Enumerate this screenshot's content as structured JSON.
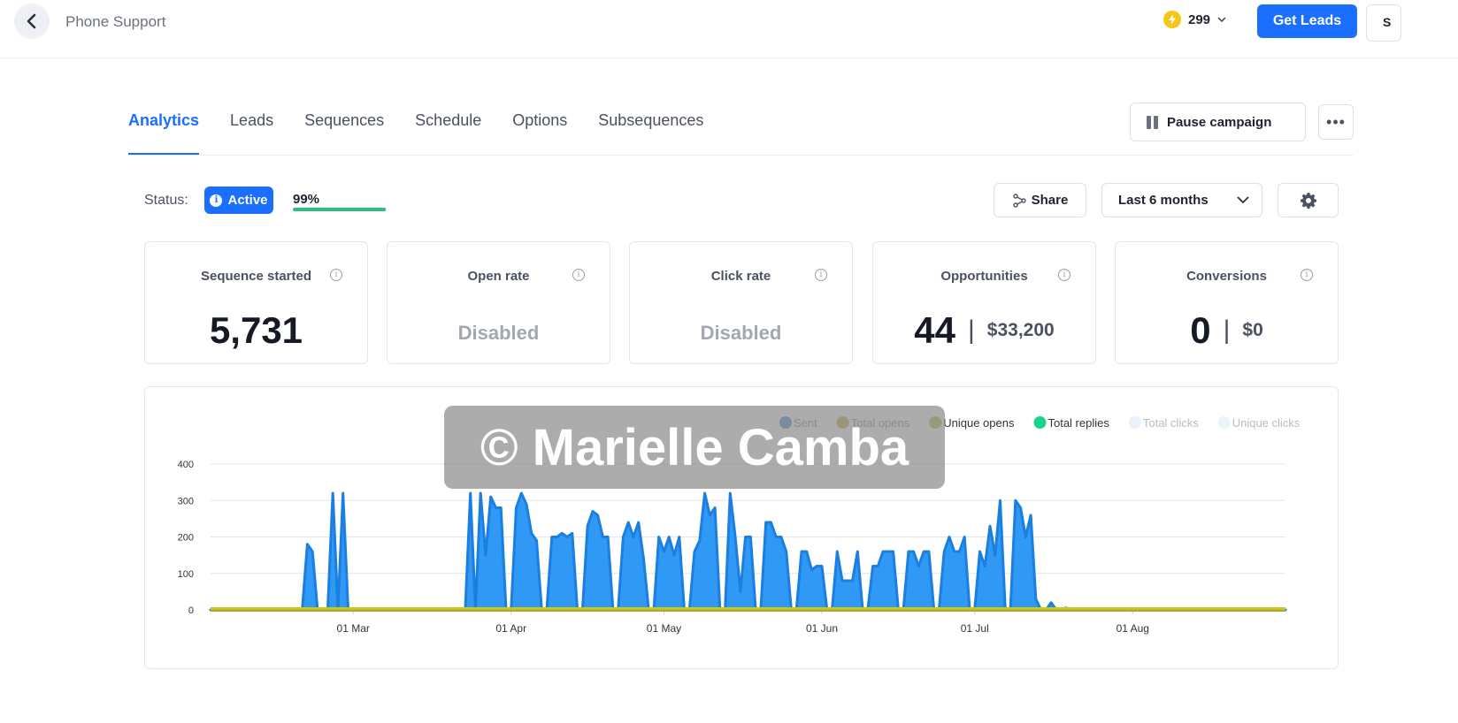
{
  "header": {
    "title": "Phone Support",
    "credits": "299",
    "get_leads_label": "Get Leads",
    "cut_button_label": "S"
  },
  "tabs": [
    {
      "label": "Analytics",
      "active": true
    },
    {
      "label": "Leads"
    },
    {
      "label": "Sequences"
    },
    {
      "label": "Schedule"
    },
    {
      "label": "Options"
    },
    {
      "label": "Subsequences"
    }
  ],
  "actions": {
    "pause_label": "Pause campaign",
    "share_label": "Share",
    "range_label": "Last 6 months"
  },
  "status": {
    "label": "Status:",
    "badge": "Active",
    "progress_text": "99%",
    "progress_fraction": 0.99
  },
  "stats": [
    {
      "title": "Sequence started",
      "value": "5,731"
    },
    {
      "title": "Open rate",
      "value": "Disabled"
    },
    {
      "title": "Click rate",
      "value": "Disabled"
    },
    {
      "title": "Opportunities",
      "value": "44",
      "amount": "$33,200"
    },
    {
      "title": "Conversions",
      "value": "0",
      "amount": "$0"
    }
  ],
  "colors": {
    "accent": "#1a6fff",
    "progress": "#2dbd7e",
    "sent": "#1e90ff",
    "total_opens": "#b5a03c",
    "unique_opens": "#bfd22e",
    "total_replies": "#17d48a"
  },
  "watermark": "© Marielle Camba",
  "chart_data": {
    "type": "area",
    "x_tick_labels": [
      "01 Mar",
      "01 Apr",
      "01 May",
      "01 Jun",
      "01 Jul",
      "01 Aug"
    ],
    "ylim": [
      0,
      400
    ],
    "y_ticks": [
      0,
      100,
      200,
      300,
      400
    ],
    "grid": true,
    "legend_position": "top-right",
    "legend": [
      {
        "name": "Sent",
        "color": "#4a8fd6",
        "faded": false
      },
      {
        "name": "Total opens",
        "color": "#c9a54a",
        "faded": false
      },
      {
        "name": "Unique opens",
        "color": "#a8c24a",
        "faded": false
      },
      {
        "name": "Total replies",
        "color": "#17d48a",
        "faded": false
      },
      {
        "name": "Total clicks",
        "color": "#eaf1fb",
        "faded": true
      },
      {
        "name": "Unique clicks",
        "color": "#eaf5f8",
        "faded": true
      }
    ],
    "series": [
      {
        "name": "Sent",
        "points": [
          [
            "2025-02-01",
            0
          ],
          [
            "2025-02-19",
            0
          ],
          [
            "2025-02-20",
            180
          ],
          [
            "2025-02-21",
            160
          ],
          [
            "2025-02-22",
            0
          ],
          [
            "2025-02-24",
            0
          ],
          [
            "2025-02-25",
            320
          ],
          [
            "2025-02-26",
            0
          ],
          [
            "2025-02-27",
            320
          ],
          [
            "2025-02-28",
            0
          ],
          [
            "2025-03-23",
            0
          ],
          [
            "2025-03-24",
            320
          ],
          [
            "2025-03-25",
            0
          ],
          [
            "2025-03-26",
            320
          ],
          [
            "2025-03-27",
            150
          ],
          [
            "2025-03-28",
            310
          ],
          [
            "2025-03-29",
            280
          ],
          [
            "2025-03-30",
            280
          ],
          [
            "2025-03-31",
            0
          ],
          [
            "2025-04-01",
            0
          ],
          [
            "2025-04-02",
            280
          ],
          [
            "2025-04-03",
            320
          ],
          [
            "2025-04-04",
            290
          ],
          [
            "2025-04-05",
            210
          ],
          [
            "2025-04-06",
            190
          ],
          [
            "2025-04-07",
            0
          ],
          [
            "2025-04-08",
            0
          ],
          [
            "2025-04-09",
            200
          ],
          [
            "2025-04-10",
            200
          ],
          [
            "2025-04-11",
            210
          ],
          [
            "2025-04-12",
            200
          ],
          [
            "2025-04-13",
            210
          ],
          [
            "2025-04-14",
            0
          ],
          [
            "2025-04-15",
            0
          ],
          [
            "2025-04-16",
            230
          ],
          [
            "2025-04-17",
            270
          ],
          [
            "2025-04-18",
            260
          ],
          [
            "2025-04-19",
            200
          ],
          [
            "2025-04-20",
            200
          ],
          [
            "2025-04-21",
            0
          ],
          [
            "2025-04-22",
            0
          ],
          [
            "2025-04-23",
            200
          ],
          [
            "2025-04-24",
            240
          ],
          [
            "2025-04-25",
            200
          ],
          [
            "2025-04-26",
            240
          ],
          [
            "2025-04-27",
            140
          ],
          [
            "2025-04-28",
            0
          ],
          [
            "2025-04-29",
            0
          ],
          [
            "2025-04-30",
            200
          ],
          [
            "2025-05-01",
            160
          ],
          [
            "2025-05-02",
            200
          ],
          [
            "2025-05-03",
            150
          ],
          [
            "2025-05-04",
            200
          ],
          [
            "2025-05-05",
            0
          ],
          [
            "2025-05-06",
            0
          ],
          [
            "2025-05-07",
            160
          ],
          [
            "2025-05-08",
            190
          ],
          [
            "2025-05-09",
            320
          ],
          [
            "2025-05-10",
            260
          ],
          [
            "2025-05-11",
            280
          ],
          [
            "2025-05-12",
            0
          ],
          [
            "2025-05-13",
            0
          ],
          [
            "2025-05-14",
            320
          ],
          [
            "2025-05-15",
            200
          ],
          [
            "2025-05-16",
            50
          ],
          [
            "2025-05-17",
            200
          ],
          [
            "2025-05-18",
            200
          ],
          [
            "2025-05-19",
            0
          ],
          [
            "2025-05-20",
            0
          ],
          [
            "2025-05-21",
            240
          ],
          [
            "2025-05-22",
            240
          ],
          [
            "2025-05-23",
            200
          ],
          [
            "2025-05-24",
            200
          ],
          [
            "2025-05-25",
            160
          ],
          [
            "2025-05-26",
            0
          ],
          [
            "2025-05-27",
            0
          ],
          [
            "2025-05-28",
            160
          ],
          [
            "2025-05-29",
            160
          ],
          [
            "2025-05-30",
            110
          ],
          [
            "2025-05-31",
            120
          ],
          [
            "2025-06-01",
            120
          ],
          [
            "2025-06-02",
            0
          ],
          [
            "2025-06-03",
            0
          ],
          [
            "2025-06-04",
            160
          ],
          [
            "2025-06-05",
            80
          ],
          [
            "2025-06-06",
            80
          ],
          [
            "2025-06-07",
            80
          ],
          [
            "2025-06-08",
            160
          ],
          [
            "2025-06-09",
            0
          ],
          [
            "2025-06-10",
            0
          ],
          [
            "2025-06-11",
            120
          ],
          [
            "2025-06-12",
            120
          ],
          [
            "2025-06-13",
            160
          ],
          [
            "2025-06-14",
            160
          ],
          [
            "2025-06-15",
            160
          ],
          [
            "2025-06-16",
            0
          ],
          [
            "2025-06-17",
            0
          ],
          [
            "2025-06-18",
            160
          ],
          [
            "2025-06-19",
            160
          ],
          [
            "2025-06-20",
            120
          ],
          [
            "2025-06-21",
            160
          ],
          [
            "2025-06-22",
            160
          ],
          [
            "2025-06-23",
            0
          ],
          [
            "2025-06-24",
            0
          ],
          [
            "2025-06-25",
            160
          ],
          [
            "2025-06-26",
            200
          ],
          [
            "2025-06-27",
            160
          ],
          [
            "2025-06-28",
            160
          ],
          [
            "2025-06-29",
            200
          ],
          [
            "2025-06-30",
            0
          ],
          [
            "2025-07-01",
            0
          ],
          [
            "2025-07-02",
            160
          ],
          [
            "2025-07-03",
            120
          ],
          [
            "2025-07-04",
            230
          ],
          [
            "2025-07-05",
            150
          ],
          [
            "2025-07-06",
            300
          ],
          [
            "2025-07-07",
            0
          ],
          [
            "2025-07-08",
            0
          ],
          [
            "2025-07-09",
            300
          ],
          [
            "2025-07-10",
            280
          ],
          [
            "2025-07-11",
            200
          ],
          [
            "2025-07-12",
            260
          ],
          [
            "2025-07-13",
            30
          ],
          [
            "2025-07-14",
            0
          ],
          [
            "2025-07-15",
            0
          ],
          [
            "2025-07-16",
            20
          ],
          [
            "2025-07-17",
            0
          ],
          [
            "2025-07-19",
            5
          ],
          [
            "2025-07-20",
            0
          ],
          [
            "2025-08-31",
            0
          ]
        ]
      }
    ]
  }
}
